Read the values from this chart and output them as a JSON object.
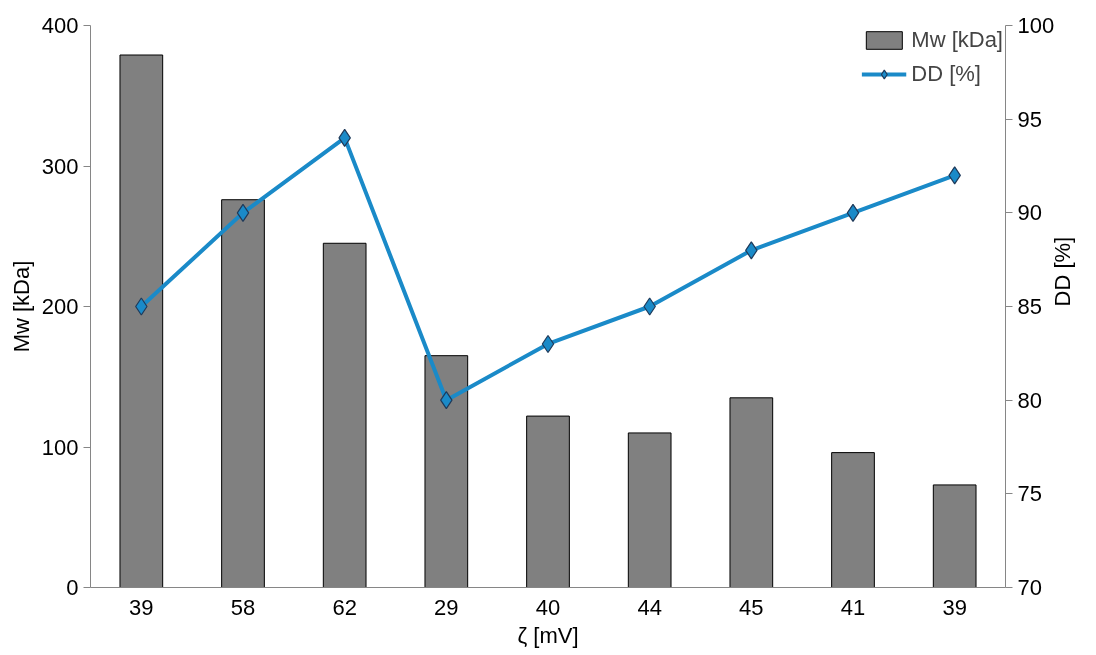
{
  "chart_data": {
    "type": "bar",
    "xlabel": "ζ [mV]",
    "ylabel": "Mw [kDa]",
    "y2label": "DD [%]",
    "categories": [
      "39",
      "58",
      "62",
      "29",
      "40",
      "44",
      "45",
      "41",
      "39"
    ],
    "series": [
      {
        "name": "Mw [kDa]",
        "color": "#808080",
        "values": [
          379,
          276,
          245,
          165,
          122,
          110,
          135,
          96,
          73
        ]
      },
      {
        "name": "DD [%]",
        "type": "line",
        "axis": "y2",
        "color": "#1a8ac8",
        "marker": "diamond",
        "values": [
          85,
          90,
          94,
          80,
          83,
          85,
          88,
          90,
          92
        ]
      }
    ],
    "ylim": [
      0,
      400
    ],
    "yticks": [
      0,
      100,
      200,
      300,
      400
    ],
    "y2lim": [
      70,
      100
    ],
    "y2ticks": [
      70,
      75,
      80,
      85,
      90,
      95,
      100
    ],
    "grid": false,
    "legend": "top right"
  }
}
